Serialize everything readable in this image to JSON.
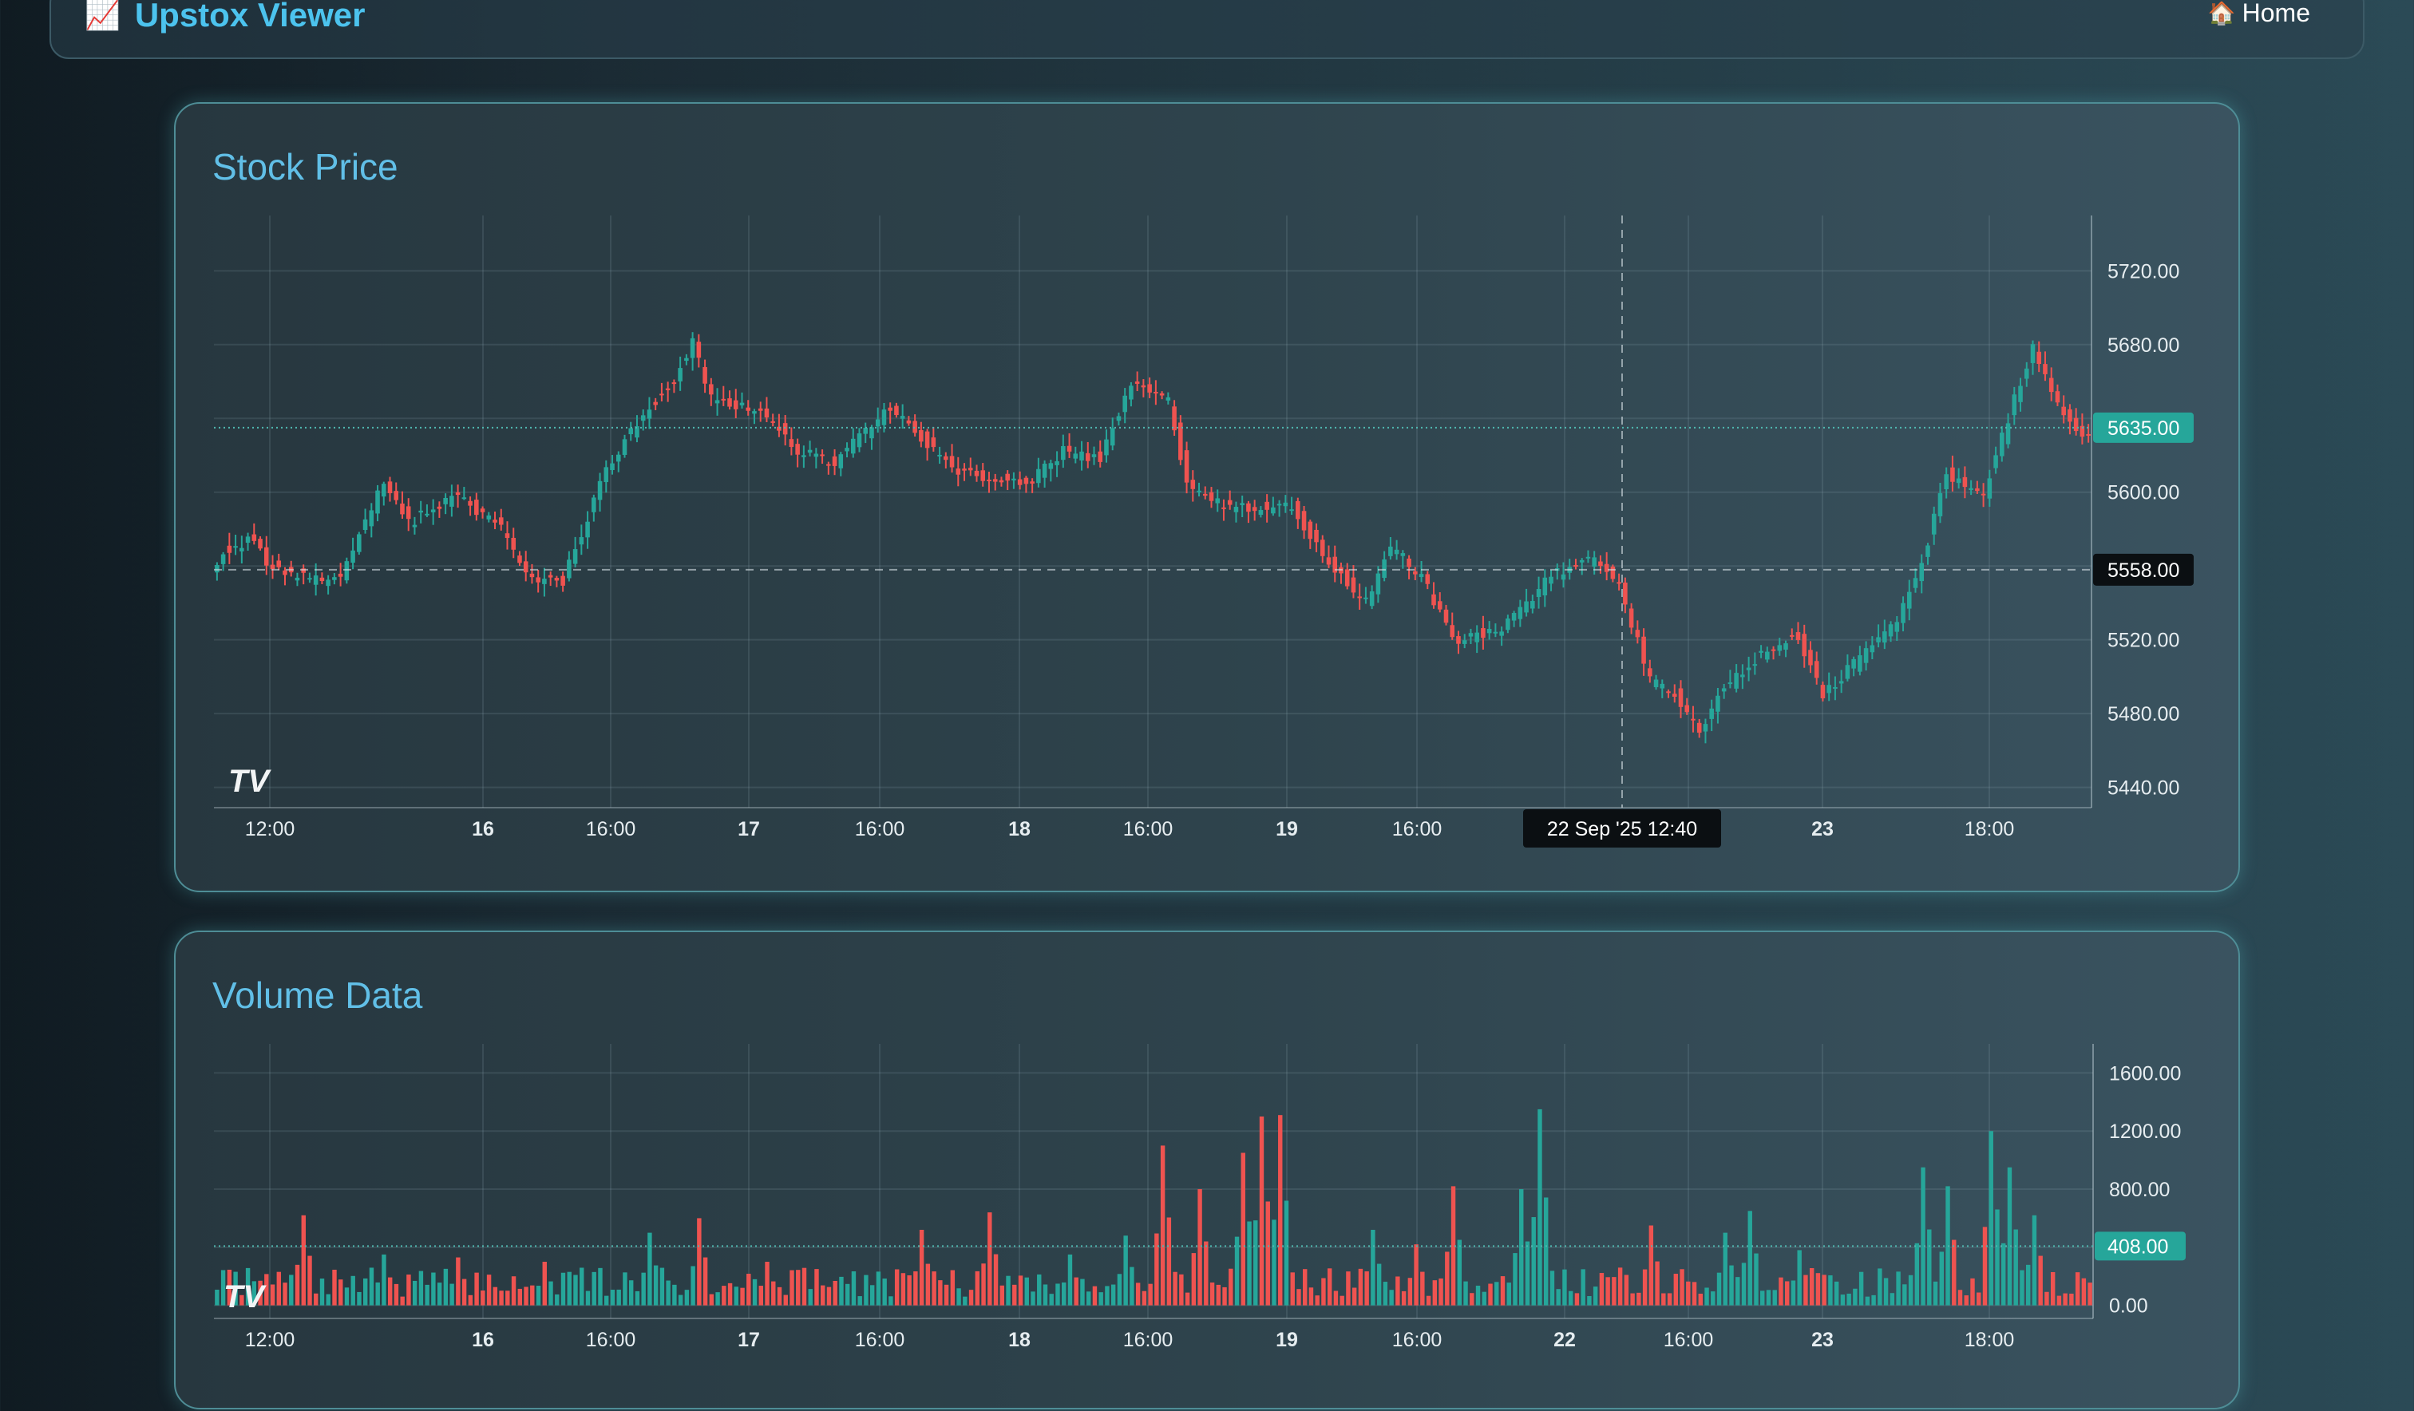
{
  "header": {
    "brand_icon": "chart-increasing-icon",
    "brand_icon_glyph": "📈",
    "app_title": "Upstox Viewer",
    "home_icon": "house-icon",
    "home_icon_glyph": "🏠",
    "home_label": "Home"
  },
  "colors": {
    "up": "#26a69a",
    "down": "#ef5350",
    "accent_title": "#4cc3ee",
    "panel_border": "#4e8d96"
  },
  "chart_data": [
    {
      "type": "candlestick",
      "title": "Stock Price",
      "watermark": "TV",
      "x_tick_labels": [
        "12:00",
        "16",
        "16:00",
        "17",
        "16:00",
        "18",
        "16:00",
        "19",
        "16:00",
        "22 Sep '25   12:40",
        "23",
        "18:00"
      ],
      "y_tick_labels": [
        "5720.00",
        "5680.00",
        "5600.00",
        "5558.00",
        "5520.00",
        "5480.00",
        "5440.00"
      ],
      "ylim": [
        5429,
        5750
      ],
      "last_price": "5635.00",
      "crosshair_price": "5558.00",
      "crosshair_time": "22 Sep '25   12:40",
      "anchors": [
        [
          0,
          5562
        ],
        [
          1,
          5568
        ],
        [
          6,
          5575
        ],
        [
          8,
          5560
        ],
        [
          16,
          5552
        ],
        [
          20,
          5553
        ],
        [
          27,
          5606
        ],
        [
          31,
          5583
        ],
        [
          38,
          5598
        ],
        [
          45,
          5585
        ],
        [
          51,
          5552
        ],
        [
          56,
          5552
        ],
        [
          63,
          5612
        ],
        [
          68,
          5638
        ],
        [
          74,
          5662
        ],
        [
          77,
          5682
        ],
        [
          80,
          5650
        ],
        [
          88,
          5645
        ],
        [
          94,
          5622
        ],
        [
          100,
          5616
        ],
        [
          109,
          5646
        ],
        [
          114,
          5630
        ],
        [
          119,
          5613
        ],
        [
          125,
          5607
        ],
        [
          131,
          5604
        ],
        [
          137,
          5622
        ],
        [
          143,
          5618
        ],
        [
          148,
          5660
        ],
        [
          154,
          5650
        ],
        [
          157,
          5604
        ],
        [
          163,
          5592
        ],
        [
          169,
          5591
        ],
        [
          174,
          5592
        ],
        [
          181,
          5558
        ],
        [
          186,
          5540
        ],
        [
          190,
          5570
        ],
        [
          195,
          5555
        ],
        [
          200,
          5520
        ],
        [
          208,
          5525
        ],
        [
          216,
          5555
        ],
        [
          223,
          5564
        ],
        [
          227,
          5550
        ],
        [
          232,
          5498
        ],
        [
          236,
          5490
        ],
        [
          240,
          5470
        ],
        [
          244,
          5494
        ],
        [
          250,
          5512
        ],
        [
          256,
          5522
        ],
        [
          260,
          5490
        ],
        [
          266,
          5510
        ],
        [
          272,
          5530
        ],
        [
          276,
          5562
        ],
        [
          280,
          5610
        ],
        [
          286,
          5600
        ],
        [
          292,
          5660
        ],
        [
          294,
          5680
        ],
        [
          298,
          5648
        ],
        [
          302,
          5632
        ]
      ]
    },
    {
      "type": "bar",
      "title": "Volume Data",
      "watermark": "TV",
      "x_tick_labels": [
        "12:00",
        "16",
        "16:00",
        "17",
        "16:00",
        "18",
        "16:00",
        "19",
        "16:00",
        "22",
        "16:00",
        "23",
        "18:00"
      ],
      "y_tick_labels": [
        "1600.00",
        "1200.00",
        "800.00",
        "408.00",
        "0.00"
      ],
      "ylim": [
        -90,
        1800
      ],
      "last_volume": "408.00",
      "spikes": [
        [
          14,
          620
        ],
        [
          27,
          350
        ],
        [
          39,
          330
        ],
        [
          53,
          300
        ],
        [
          70,
          500
        ],
        [
          78,
          600
        ],
        [
          89,
          300
        ],
        [
          97,
          250
        ],
        [
          114,
          520
        ],
        [
          125,
          640
        ],
        [
          138,
          350
        ],
        [
          147,
          480
        ],
        [
          153,
          1100
        ],
        [
          159,
          800
        ],
        [
          166,
          1050
        ],
        [
          169,
          1300
        ],
        [
          172,
          1310
        ],
        [
          187,
          520
        ],
        [
          194,
          420
        ],
        [
          200,
          820
        ],
        [
          211,
          800
        ],
        [
          214,
          1350
        ],
        [
          232,
          550
        ],
        [
          244,
          500
        ],
        [
          248,
          650
        ],
        [
          256,
          380
        ],
        [
          276,
          950
        ],
        [
          280,
          820
        ],
        [
          287,
          1200
        ],
        [
          290,
          950
        ],
        [
          294,
          620
        ]
      ]
    }
  ]
}
